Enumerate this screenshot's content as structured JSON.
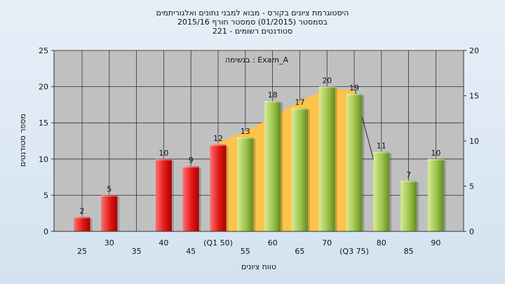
{
  "chart_data": {
    "type": "bar",
    "title_lines": [
      "היסטוגרמת ציונים בקורס - מבוא למבני נתונים ואלגוריתמים",
      "בסמסטר (01/2015) סמסטר חורף 2015/16",
      "סטודנטים רשומים - 221"
    ],
    "annotation": "בנשימה : Exam_A",
    "xlabel": "טווח ציונים",
    "ylabel": "מספר סטודנטים",
    "ylim": [
      0,
      25
    ],
    "y2lim": [
      0,
      20
    ],
    "yticks": [
      0,
      5,
      10,
      15,
      20,
      25
    ],
    "y2ticks": [
      0,
      5,
      10,
      15,
      20
    ],
    "grid": true,
    "categories": [
      "25",
      "30",
      "35",
      "40",
      "45",
      "(Q1 50)",
      "55",
      "60",
      "65",
      "70",
      "(Q3 75)",
      "80",
      "85",
      "90"
    ],
    "values": [
      2,
      5,
      0,
      10,
      9,
      12,
      13,
      18,
      17,
      20,
      19,
      11,
      7,
      10
    ],
    "data_labels": [
      "2",
      "5",
      "",
      "10",
      "9",
      "12",
      "13",
      "18",
      "17",
      "20",
      "19",
      "11",
      "7",
      "10"
    ],
    "series_colors": [
      "red",
      "red",
      "red",
      "red",
      "red",
      "red",
      "green",
      "green",
      "green",
      "green",
      "green",
      "green",
      "green",
      "green"
    ],
    "band": {
      "color": "#fdc34c",
      "outline": "#444444"
    },
    "colors": {
      "red_light": "#ff6a6a",
      "red_dark": "#b80000",
      "green_light": "#cfe588",
      "green_dark": "#6f9a2a",
      "plot_bg": "#c0c0c0",
      "grid": "#333333"
    }
  }
}
